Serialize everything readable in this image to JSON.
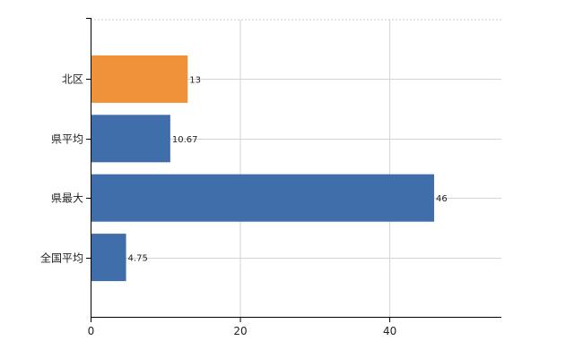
{
  "chart_data": {
    "type": "bar",
    "orientation": "horizontal",
    "categories": [
      "北区",
      "県平均",
      "県最大",
      "全国平均"
    ],
    "values": [
      13,
      10.67,
      46,
      4.75
    ],
    "data_labels": [
      "13",
      "10.67",
      "46",
      "4.75"
    ],
    "bar_colors": [
      "#f0923a",
      "#3f6eab",
      "#3f6eab",
      "#3f6eab"
    ],
    "x_ticks": [
      0,
      20,
      40
    ],
    "x_tick_labels": [
      "0",
      "20",
      "40"
    ],
    "xlim": [
      0,
      55
    ],
    "title": "",
    "xlabel": "",
    "ylabel": "",
    "grid": true,
    "grid_color": "#d4d4d4",
    "axis_color": "#000000"
  }
}
